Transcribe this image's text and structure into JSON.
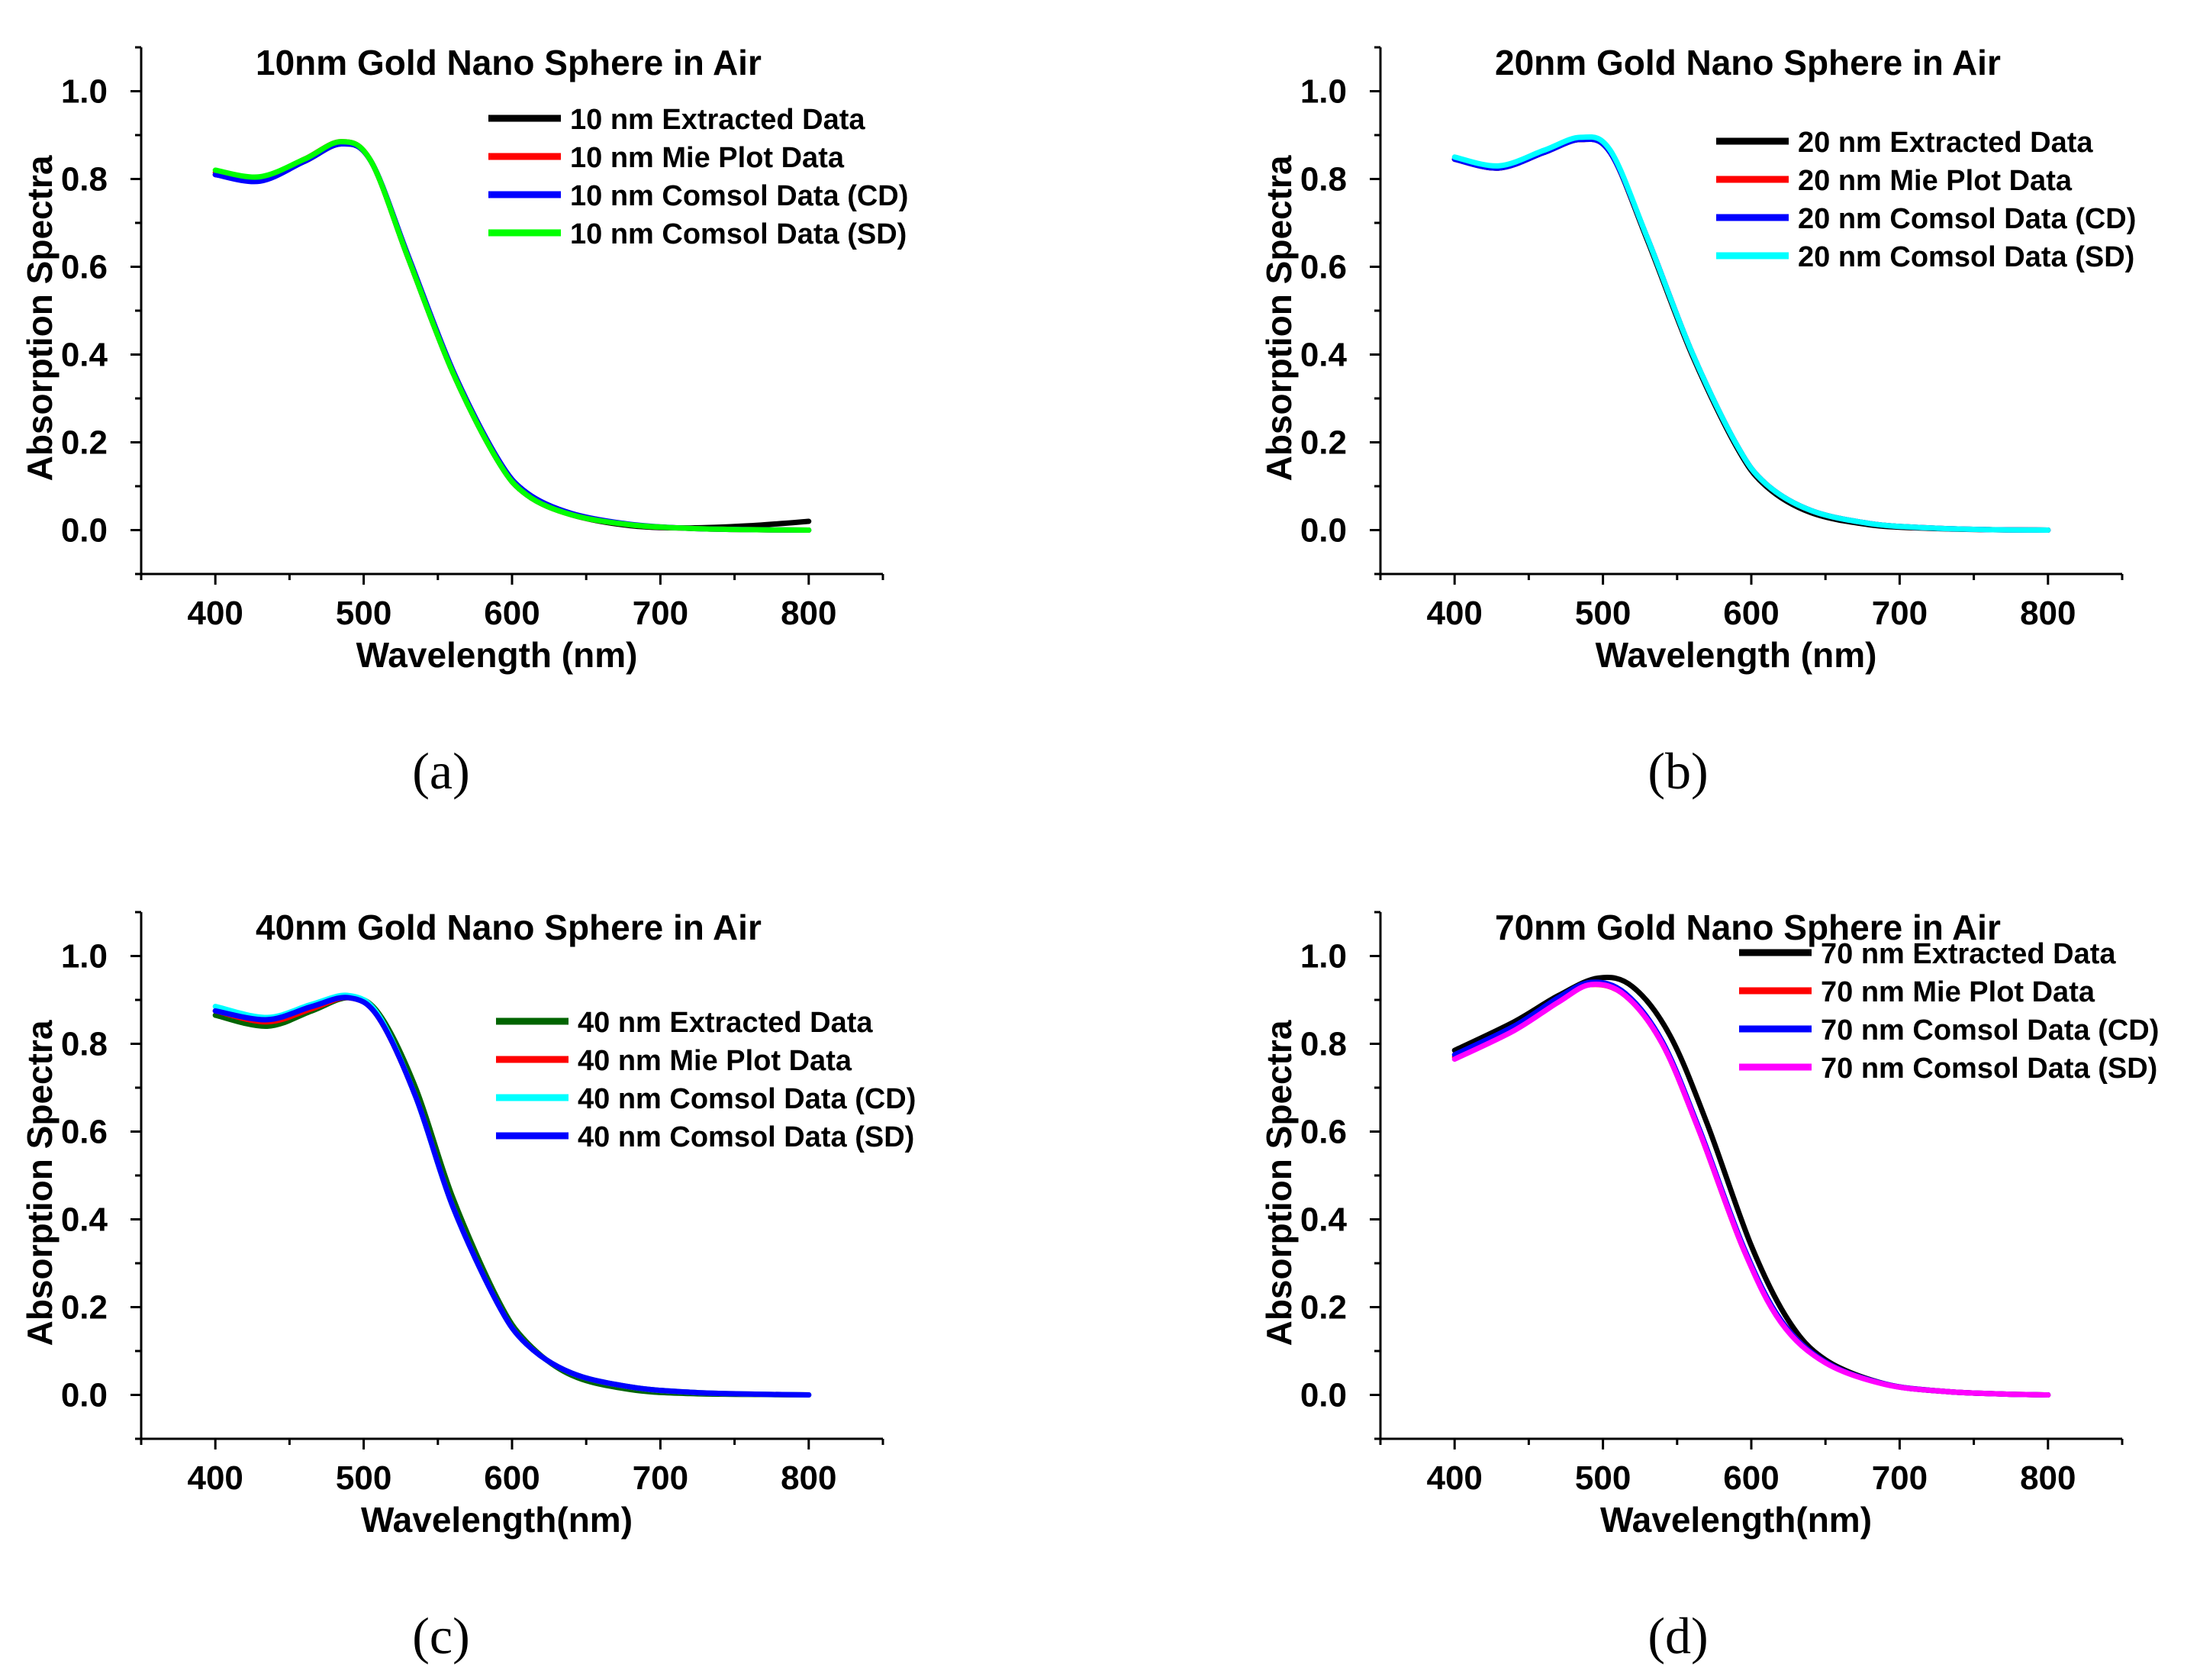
{
  "chart_data": [
    {
      "type": "line",
      "panel_label": "(a)",
      "title": "10nm Gold Nano Sphere in Air",
      "xlabel": "Wavelength (nm)",
      "ylabel": "Absorption Spectra",
      "xlim": [
        350,
        850
      ],
      "ylim": [
        -0.1,
        1.1
      ],
      "xticks": [
        400,
        500,
        600,
        700,
        800
      ],
      "xtick_labels": [
        "400",
        "500",
        "600",
        "700",
        "800"
      ],
      "yticks": [
        0.0,
        0.2,
        0.4,
        0.6,
        0.8,
        1.0
      ],
      "ytick_labels": [
        "0.0",
        "0.2",
        "0.4",
        "0.6",
        "0.8",
        "1.0"
      ],
      "grid": false,
      "legend_position": "top-right",
      "series": [
        {
          "name": "10 nm Extracted Data",
          "color": "#000000",
          "x": [
            400,
            430,
            460,
            485,
            505,
            530,
            560,
            590,
            610,
            640,
            680,
            720,
            760,
            800
          ],
          "y": [
            0.81,
            0.8,
            0.84,
            0.88,
            0.84,
            0.62,
            0.36,
            0.16,
            0.08,
            0.035,
            0.01,
            0.005,
            0.01,
            0.02
          ]
        },
        {
          "name": "10 nm Mie Plot Data",
          "color": "#ff0000",
          "x": [
            400,
            430,
            460,
            485,
            505,
            530,
            560,
            590,
            610,
            640,
            680,
            720,
            760,
            800
          ],
          "y": [
            0.815,
            0.8,
            0.845,
            0.885,
            0.84,
            0.62,
            0.36,
            0.16,
            0.08,
            0.035,
            0.012,
            0.004,
            0.001,
            0.0
          ]
        },
        {
          "name": "10 nm Comsol Data (CD)",
          "color": "#0000ff",
          "x": [
            400,
            430,
            460,
            485,
            505,
            530,
            560,
            590,
            610,
            640,
            680,
            720,
            760,
            800
          ],
          "y": [
            0.81,
            0.795,
            0.84,
            0.88,
            0.84,
            0.625,
            0.365,
            0.165,
            0.085,
            0.038,
            0.013,
            0.004,
            0.001,
            0.0
          ]
        },
        {
          "name": "10 nm Comsol Data (SD)",
          "color": "#00ff00",
          "x": [
            400,
            430,
            460,
            485,
            505,
            530,
            560,
            590,
            610,
            640,
            680,
            720,
            760,
            800
          ],
          "y": [
            0.82,
            0.805,
            0.845,
            0.885,
            0.84,
            0.62,
            0.36,
            0.16,
            0.08,
            0.035,
            0.012,
            0.004,
            0.001,
            0.0
          ]
        }
      ]
    },
    {
      "type": "line",
      "panel_label": "(b)",
      "title": "20nm Gold Nano Sphere in Air",
      "xlabel": "Wavelength (nm)",
      "ylabel": "Absorption Spectra",
      "xlim": [
        350,
        850
      ],
      "ylim": [
        -0.1,
        1.1
      ],
      "xticks": [
        400,
        500,
        600,
        700,
        800
      ],
      "xtick_labels": [
        "400",
        "500",
        "600",
        "700",
        "800"
      ],
      "yticks": [
        0.0,
        0.2,
        0.4,
        0.6,
        0.8,
        1.0
      ],
      "ytick_labels": [
        "0.0",
        "0.2",
        "0.4",
        "0.6",
        "0.8",
        "1.0"
      ],
      "grid": false,
      "legend_position": "top-right",
      "series": [
        {
          "name": "20 nm Extracted Data",
          "color": "#000000",
          "x": [
            400,
            430,
            460,
            485,
            505,
            530,
            560,
            590,
            610,
            640,
            680,
            720,
            760,
            800
          ],
          "y": [
            0.845,
            0.825,
            0.86,
            0.89,
            0.86,
            0.66,
            0.4,
            0.19,
            0.1,
            0.04,
            0.012,
            0.004,
            0.001,
            0.0
          ]
        },
        {
          "name": "20 nm Mie Plot Data",
          "color": "#ff0000",
          "x": [
            400,
            430,
            460,
            485,
            505,
            530,
            560,
            590,
            610,
            640,
            680,
            720,
            760,
            800
          ],
          "y": [
            0.845,
            0.825,
            0.86,
            0.89,
            0.86,
            0.665,
            0.405,
            0.195,
            0.105,
            0.045,
            0.015,
            0.005,
            0.001,
            0.0
          ]
        },
        {
          "name": "20 nm Comsol Data (CD)",
          "color": "#0000ff",
          "x": [
            400,
            430,
            460,
            485,
            505,
            530,
            560,
            590,
            610,
            640,
            680,
            720,
            760,
            800
          ],
          "y": [
            0.845,
            0.825,
            0.86,
            0.89,
            0.86,
            0.665,
            0.405,
            0.195,
            0.105,
            0.045,
            0.015,
            0.005,
            0.001,
            0.0
          ]
        },
        {
          "name": "20 nm Comsol Data (SD)",
          "color": "#00ffff",
          "x": [
            400,
            430,
            460,
            485,
            505,
            530,
            560,
            590,
            610,
            640,
            680,
            720,
            760,
            800
          ],
          "y": [
            0.85,
            0.83,
            0.865,
            0.895,
            0.865,
            0.665,
            0.405,
            0.195,
            0.105,
            0.045,
            0.015,
            0.005,
            0.001,
            0.0
          ]
        }
      ]
    },
    {
      "type": "line",
      "panel_label": "(c)",
      "title": "40nm Gold Nano Sphere in Air",
      "xlabel": "Wavelength(nm)",
      "ylabel": "Absorption Spectra",
      "xlim": [
        350,
        850
      ],
      "ylim": [
        -0.1,
        1.1
      ],
      "xticks": [
        400,
        500,
        600,
        700,
        800
      ],
      "xtick_labels": [
        "400",
        "500",
        "600",
        "700",
        "800"
      ],
      "yticks": [
        0.0,
        0.2,
        0.4,
        0.6,
        0.8,
        1.0
      ],
      "ytick_labels": [
        "0.0",
        "0.2",
        "0.4",
        "0.6",
        "0.8",
        "1.0"
      ],
      "grid": false,
      "legend_position": "center-right",
      "series": [
        {
          "name": "40 nm Extracted Data",
          "color": "#006400",
          "x": [
            400,
            435,
            465,
            490,
            510,
            535,
            560,
            590,
            610,
            640,
            680,
            720,
            760,
            800
          ],
          "y": [
            0.865,
            0.84,
            0.875,
            0.905,
            0.87,
            0.7,
            0.45,
            0.22,
            0.12,
            0.045,
            0.012,
            0.003,
            0.001,
            0.0
          ]
        },
        {
          "name": "40 nm Mie Plot Data",
          "color": "#ff0000",
          "x": [
            400,
            435,
            465,
            490,
            510,
            535,
            560,
            590,
            610,
            640,
            680,
            720,
            760,
            800
          ],
          "y": [
            0.875,
            0.85,
            0.88,
            0.905,
            0.86,
            0.68,
            0.43,
            0.21,
            0.115,
            0.05,
            0.018,
            0.006,
            0.002,
            0.0
          ]
        },
        {
          "name": "40 nm Comsol Data (CD)",
          "color": "#00ffff",
          "x": [
            400,
            435,
            465,
            490,
            510,
            535,
            560,
            590,
            610,
            640,
            680,
            720,
            760,
            800
          ],
          "y": [
            0.885,
            0.86,
            0.89,
            0.91,
            0.865,
            0.68,
            0.43,
            0.21,
            0.115,
            0.05,
            0.018,
            0.006,
            0.002,
            0.0
          ]
        },
        {
          "name": "40 nm Comsol Data (SD)",
          "color": "#0000ff",
          "x": [
            400,
            435,
            465,
            490,
            510,
            535,
            560,
            590,
            610,
            640,
            680,
            720,
            760,
            800
          ],
          "y": [
            0.875,
            0.855,
            0.885,
            0.905,
            0.86,
            0.68,
            0.43,
            0.21,
            0.115,
            0.05,
            0.018,
            0.006,
            0.002,
            0.0
          ]
        }
      ]
    },
    {
      "type": "line",
      "panel_label": "(d)",
      "title": "70nm Gold Nano Sphere in Air",
      "xlabel": "Wavelength(nm)",
      "ylabel": "Absorption Spectra",
      "xlim": [
        350,
        850
      ],
      "ylim": [
        -0.1,
        1.1
      ],
      "xticks": [
        400,
        500,
        600,
        700,
        800
      ],
      "xtick_labels": [
        "400",
        "500",
        "600",
        "700",
        "800"
      ],
      "yticks": [
        0.0,
        0.2,
        0.4,
        0.6,
        0.8,
        1.0
      ],
      "ytick_labels": [
        "0.0",
        "0.2",
        "0.4",
        "0.6",
        "0.8",
        "1.0"
      ],
      "grid": false,
      "legend_position": "top-right",
      "series": [
        {
          "name": "70 nm Extracted Data",
          "color": "#000000",
          "x": [
            400,
            440,
            470,
            497,
            520,
            545,
            570,
            600,
            625,
            650,
            690,
            730,
            770,
            800
          ],
          "y": [
            0.785,
            0.85,
            0.91,
            0.95,
            0.93,
            0.82,
            0.62,
            0.34,
            0.17,
            0.08,
            0.025,
            0.008,
            0.002,
            0.0
          ]
        },
        {
          "name": "70 nm Mie Plot Data",
          "color": "#ff0000",
          "x": [
            400,
            440,
            470,
            492,
            515,
            540,
            565,
            595,
            620,
            650,
            690,
            730,
            770,
            800
          ],
          "y": [
            0.77,
            0.835,
            0.9,
            0.935,
            0.91,
            0.8,
            0.6,
            0.33,
            0.17,
            0.075,
            0.025,
            0.008,
            0.002,
            0.0
          ]
        },
        {
          "name": "70 nm Comsol Data (CD)",
          "color": "#0000ff",
          "x": [
            400,
            440,
            470,
            492,
            515,
            540,
            565,
            595,
            620,
            650,
            690,
            730,
            770,
            800
          ],
          "y": [
            0.775,
            0.84,
            0.905,
            0.94,
            0.915,
            0.805,
            0.605,
            0.335,
            0.17,
            0.075,
            0.025,
            0.008,
            0.002,
            0.0
          ]
        },
        {
          "name": "70 nm Comsol Data (SD)",
          "color": "#ff00ff",
          "x": [
            400,
            440,
            470,
            492,
            515,
            540,
            565,
            595,
            620,
            650,
            690,
            730,
            770,
            800
          ],
          "y": [
            0.765,
            0.83,
            0.895,
            0.935,
            0.91,
            0.8,
            0.6,
            0.33,
            0.165,
            0.073,
            0.024,
            0.008,
            0.002,
            0.0
          ]
        }
      ]
    }
  ]
}
